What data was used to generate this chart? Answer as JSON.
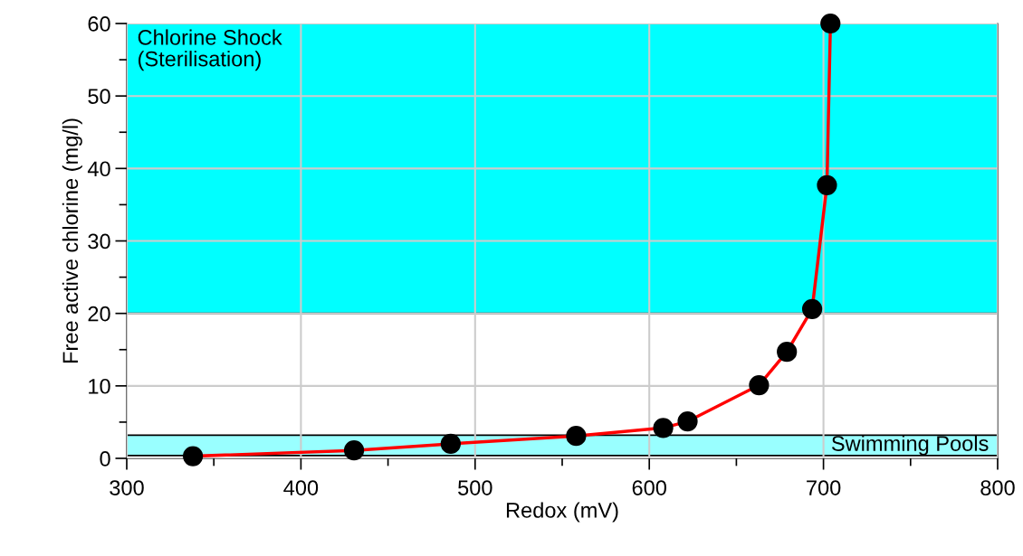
{
  "chart_data": {
    "type": "line",
    "xlabel": "Redox (mV)",
    "ylabel": "Free active chlorine (mg/l)",
    "x": [
      338,
      430.5,
      486,
      558,
      608,
      622,
      663,
      679,
      693.5,
      702,
      704
    ],
    "series": [
      {
        "color": "#ff0000",
        "values": [
          0.3,
          1.1,
          2.0,
          3.1,
          4.2,
          5.1,
          10.1,
          14.7,
          20.6,
          37.7,
          60
        ]
      }
    ],
    "xlim": [
      300,
      800
    ],
    "ylim": [
      0,
      60
    ],
    "xticks": [
      300,
      400,
      500,
      600,
      700,
      800
    ],
    "yticks": [
      0,
      10,
      20,
      30,
      40,
      50,
      60
    ],
    "bands": [
      {
        "axis": "y",
        "from": 20,
        "to": 60,
        "label": "Chlorine Shock\n(Sterilisation)",
        "color": "#00ffff"
      },
      {
        "axis": "y",
        "from": 0.4,
        "to": 3.2,
        "label": "Swimming Pools",
        "color": "#99ffff"
      }
    ],
    "grid": true,
    "marker": "circle",
    "line_style": "solid"
  }
}
